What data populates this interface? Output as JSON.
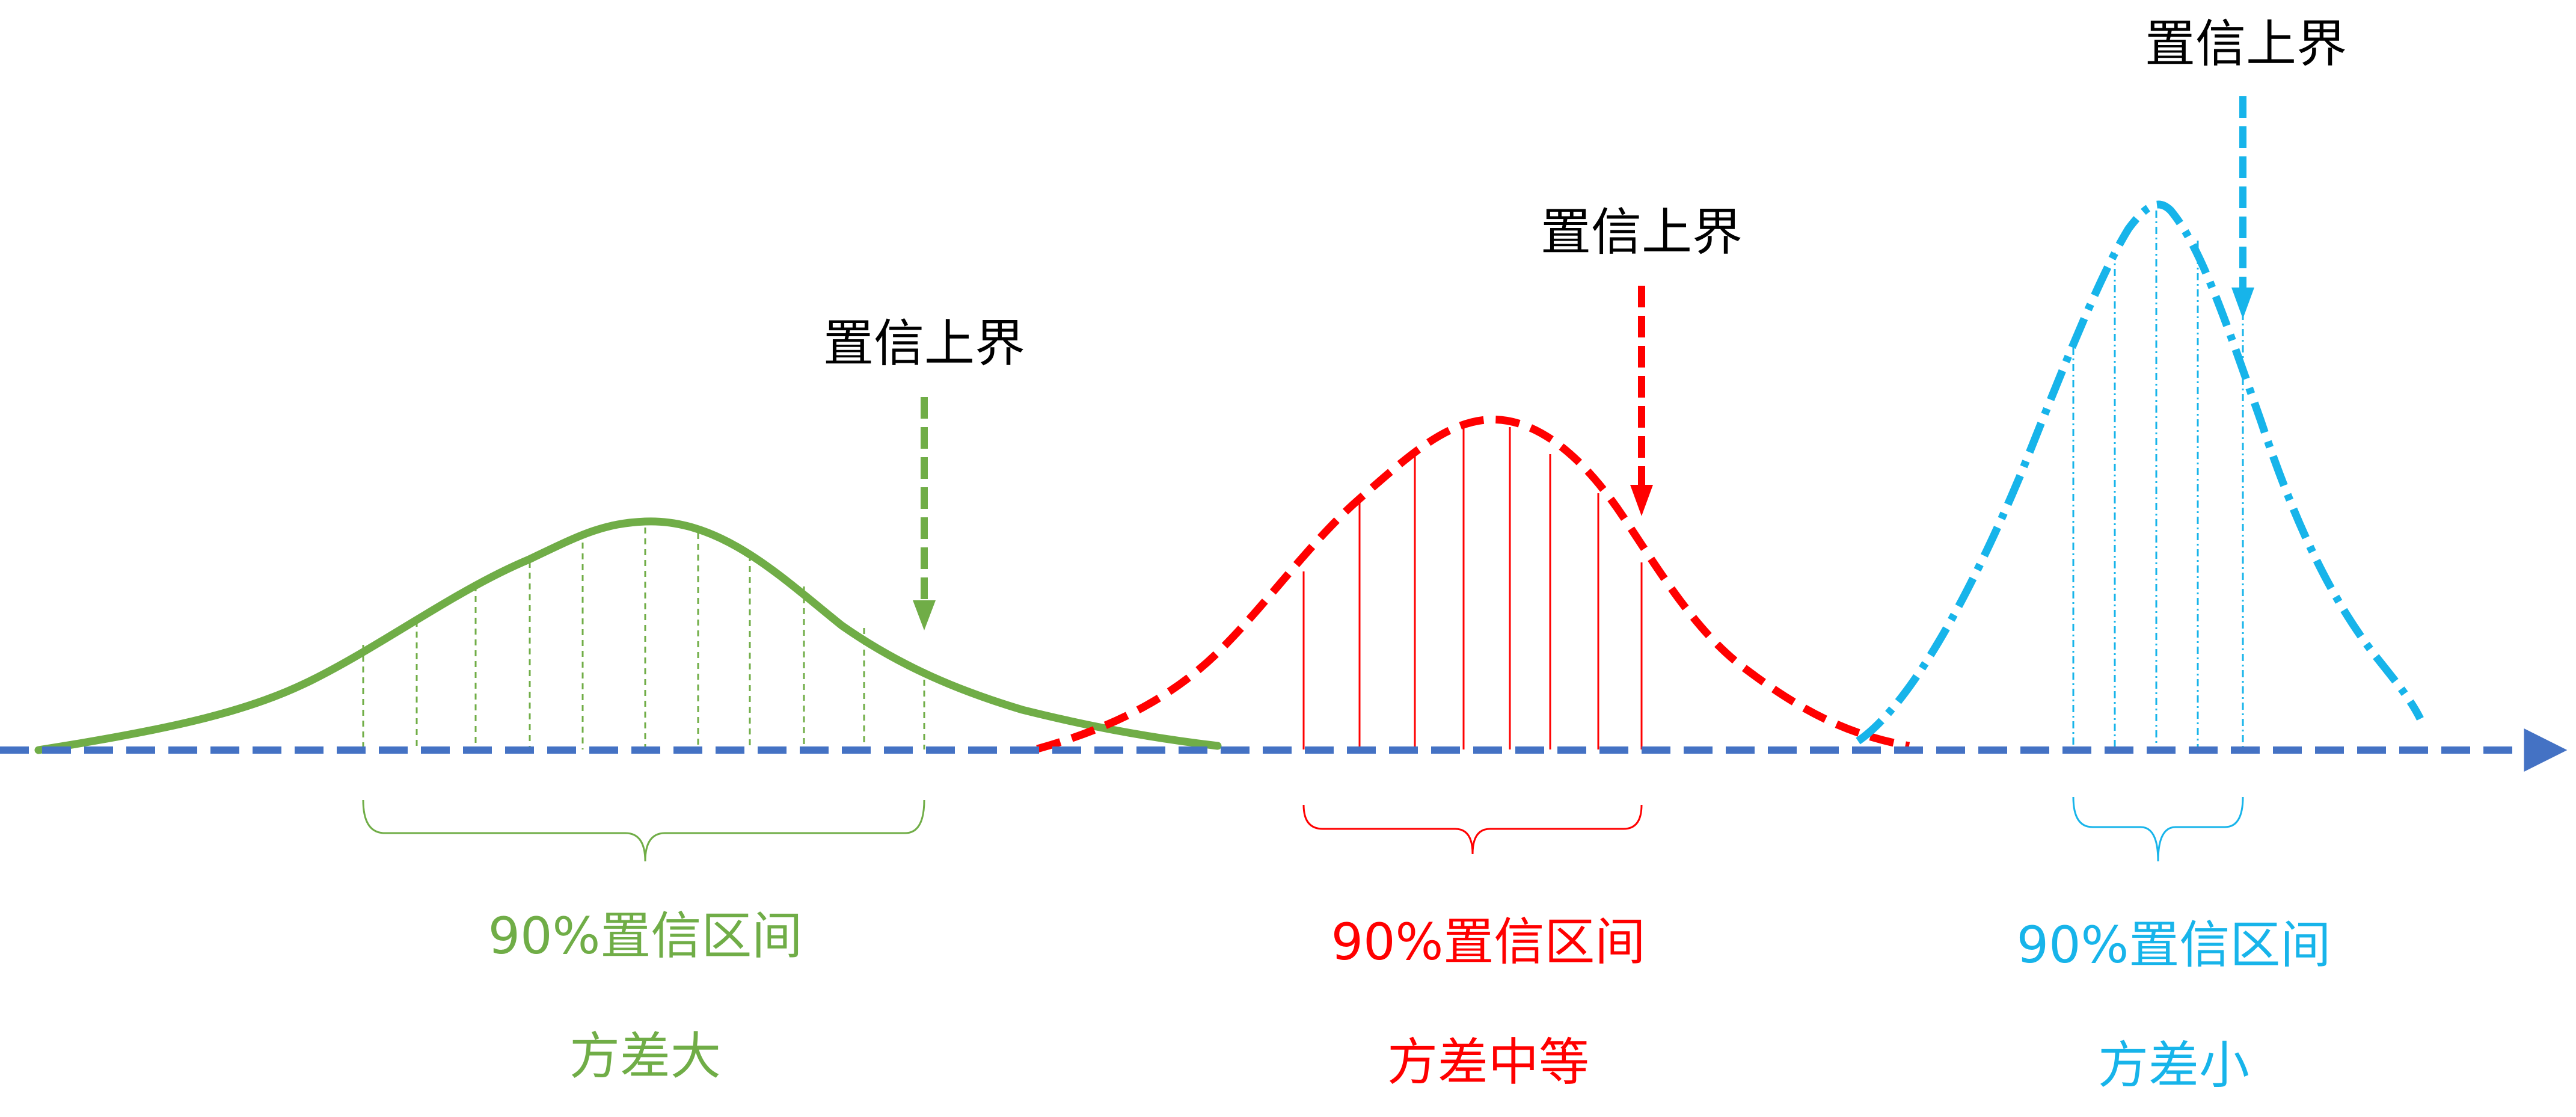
{
  "colors": {
    "axis": "#4472C4",
    "green": "#70AD47",
    "red": "#FF0000",
    "blue": "#17B4EA",
    "text": "#000000"
  },
  "groups": [
    {
      "key": "large",
      "color_key": "green",
      "curve_style": "solid",
      "upper_bound_label": "置信上界",
      "interval_label": "90%置信区间",
      "variance_label": "方差大"
    },
    {
      "key": "medium",
      "color_key": "red",
      "curve_style": "dashed",
      "upper_bound_label": "置信上界",
      "interval_label": "90%置信区间",
      "variance_label": "方差中等"
    },
    {
      "key": "small",
      "color_key": "blue",
      "curve_style": "dash-dot",
      "upper_bound_label": "置信上界",
      "interval_label": "90%置信区间",
      "variance_label": "方差小"
    }
  ]
}
